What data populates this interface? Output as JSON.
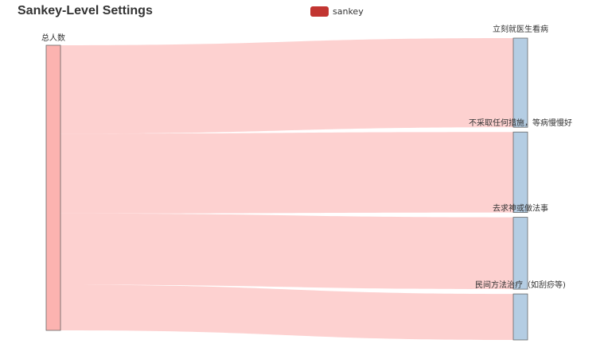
{
  "chart_data": {
    "type": "sankey",
    "title": "Sankey-Level Settings",
    "legend": {
      "position": "top-center",
      "items": [
        {
          "name": "sankey",
          "color": "#c23531"
        }
      ]
    },
    "colors": {
      "source_node": "#fcb3b0",
      "target_node": "#b4cde3",
      "node_border": "#666666",
      "link": "#fcb3b0"
    },
    "nodes": [
      {
        "name": "总人数",
        "level": 0
      },
      {
        "name": "立刻就医生看病",
        "level": 1
      },
      {
        "name": "不采取任何措施，等病慢慢好",
        "level": 1
      },
      {
        "name": "去求神或做法事",
        "level": 1
      },
      {
        "name": "民间方法治疗（如刮痧等)",
        "level": 1
      }
    ],
    "links": [
      {
        "source": "总人数",
        "target": "立刻就医生看病",
        "value": 31
      },
      {
        "source": "总人数",
        "target": "不采取任何措施，等病慢慢好",
        "value": 28
      },
      {
        "source": "总人数",
        "target": "去求神或做法事",
        "value": 25
      },
      {
        "source": "总人数",
        "target": "民间方法治疗（如刮痧等)",
        "value": 16
      }
    ]
  }
}
